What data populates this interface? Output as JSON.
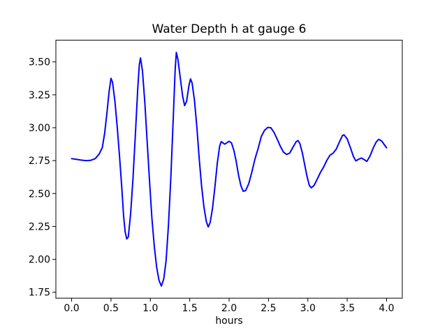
{
  "chart_data": {
    "type": "line",
    "title": "Water Depth h at gauge 6",
    "xlabel": "hours",
    "ylabel": "",
    "grid": false,
    "legend": "none",
    "line_color": "#0000ff",
    "axis_color": "#000000",
    "background_color": "#ffffff",
    "xlim": [
      -0.2,
      4.2
    ],
    "ylim": [
      1.705,
      3.665
    ],
    "xticks": [
      0.0,
      0.5,
      1.0,
      1.5,
      2.0,
      2.5,
      3.0,
      3.5,
      4.0
    ],
    "xtick_labels": [
      "0.0",
      "0.5",
      "1.0",
      "1.5",
      "2.0",
      "2.5",
      "3.0",
      "3.5",
      "4.0"
    ],
    "yticks": [
      1.75,
      2.0,
      2.25,
      2.5,
      2.75,
      3.0,
      3.25,
      3.5
    ],
    "ytick_labels": [
      "1.75",
      "2.00",
      "2.25",
      "2.50",
      "2.75",
      "3.00",
      "3.25",
      "3.50"
    ],
    "series": [
      {
        "name": "h",
        "x": [
          0.0,
          0.06,
          0.12,
          0.18,
          0.24,
          0.3,
          0.35,
          0.39,
          0.42,
          0.45,
          0.475,
          0.5,
          0.52,
          0.55,
          0.58,
          0.61,
          0.64,
          0.66,
          0.68,
          0.7,
          0.72,
          0.75,
          0.78,
          0.81,
          0.84,
          0.86,
          0.875,
          0.9,
          0.93,
          0.96,
          0.99,
          1.02,
          1.05,
          1.08,
          1.11,
          1.14,
          1.17,
          1.2,
          1.23,
          1.26,
          1.29,
          1.315,
          1.33,
          1.35,
          1.38,
          1.41,
          1.435,
          1.46,
          1.49,
          1.51,
          1.53,
          1.56,
          1.59,
          1.62,
          1.65,
          1.68,
          1.71,
          1.735,
          1.76,
          1.79,
          1.82,
          1.85,
          1.88,
          1.9,
          1.925,
          1.945,
          1.97,
          2.0,
          2.03,
          2.06,
          2.09,
          2.12,
          2.15,
          2.18,
          2.21,
          2.25,
          2.29,
          2.33,
          2.37,
          2.41,
          2.45,
          2.49,
          2.53,
          2.57,
          2.61,
          2.65,
          2.69,
          2.73,
          2.77,
          2.81,
          2.85,
          2.875,
          2.9,
          2.93,
          2.96,
          2.99,
          3.02,
          3.045,
          3.08,
          3.12,
          3.16,
          3.2,
          3.24,
          3.28,
          3.32,
          3.36,
          3.4,
          3.44,
          3.46,
          3.5,
          3.54,
          3.58,
          3.61,
          3.65,
          3.68,
          3.72,
          3.75,
          3.79,
          3.83,
          3.87,
          3.9,
          3.94,
          3.97,
          4.0
        ],
        "y": [
          2.765,
          2.76,
          2.754,
          2.75,
          2.752,
          2.765,
          2.8,
          2.85,
          2.96,
          3.12,
          3.27,
          3.375,
          3.345,
          3.2,
          3.0,
          2.77,
          2.52,
          2.33,
          2.21,
          2.155,
          2.17,
          2.35,
          2.62,
          2.95,
          3.3,
          3.48,
          3.53,
          3.43,
          3.19,
          2.89,
          2.59,
          2.31,
          2.1,
          1.94,
          1.84,
          1.797,
          1.85,
          1.99,
          2.26,
          2.62,
          3.06,
          3.44,
          3.572,
          3.52,
          3.38,
          3.24,
          3.168,
          3.2,
          3.32,
          3.371,
          3.34,
          3.21,
          3.01,
          2.77,
          2.56,
          2.4,
          2.29,
          2.246,
          2.28,
          2.39,
          2.55,
          2.73,
          2.86,
          2.894,
          2.883,
          2.875,
          2.885,
          2.897,
          2.885,
          2.83,
          2.745,
          2.64,
          2.56,
          2.517,
          2.522,
          2.575,
          2.665,
          2.765,
          2.845,
          2.935,
          2.98,
          3.002,
          3.0,
          2.965,
          2.915,
          2.86,
          2.815,
          2.797,
          2.807,
          2.85,
          2.892,
          2.903,
          2.878,
          2.81,
          2.72,
          2.63,
          2.56,
          2.543,
          2.562,
          2.61,
          2.66,
          2.7,
          2.75,
          2.79,
          2.806,
          2.836,
          2.89,
          2.94,
          2.946,
          2.915,
          2.85,
          2.78,
          2.748,
          2.762,
          2.77,
          2.756,
          2.744,
          2.785,
          2.845,
          2.893,
          2.912,
          2.898,
          2.872,
          2.848
        ]
      }
    ]
  }
}
